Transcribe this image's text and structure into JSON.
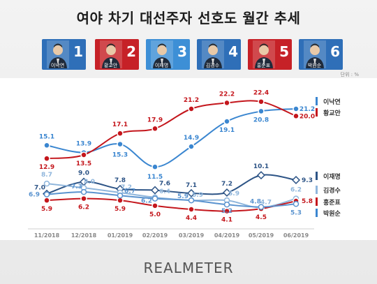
{
  "title": "여야 차기 대선주자 선호도 월간 추세",
  "unit_label": "단위 : %",
  "brand": "REALMETER",
  "candidates": [
    {
      "number": "1",
      "name": "이낙연",
      "color": "#2f6fb8",
      "icon": "person-photo"
    },
    {
      "number": "2",
      "name": "황교안",
      "color": "#c62127",
      "icon": "person-photo"
    },
    {
      "number": "3",
      "name": "이재명",
      "color": "#3d8fd6",
      "icon": "person-photo"
    },
    {
      "number": "4",
      "name": "김경수",
      "color": "#2f6fb8",
      "icon": "person-photo"
    },
    {
      "number": "5",
      "name": "홍준표",
      "color": "#c62127",
      "icon": "person-photo"
    },
    {
      "number": "6",
      "name": "박원순",
      "color": "#2f6fb8",
      "icon": "person-photo"
    }
  ],
  "chart_data": {
    "type": "line",
    "categories": [
      "11/2018",
      "12/2018",
      "01/2019",
      "02/2019",
      "03/2019",
      "04/2019",
      "05/2019",
      "06/2019"
    ],
    "ylim": [
      3,
      24
    ],
    "grid": false,
    "legend": "right",
    "series": [
      {
        "name": "이낙연",
        "values": [
          15.1,
          13.9,
          15.3,
          11.5,
          14.9,
          19.1,
          20.8,
          21.2
        ],
        "color": "#3a86d0",
        "legend_color": "#3a86d0"
      },
      {
        "name": "황교안",
        "values": [
          12.9,
          13.5,
          17.1,
          17.9,
          21.2,
          22.2,
          22.4,
          20.0
        ],
        "color": "#c4161c",
        "legend_color": "#c4161c"
      },
      {
        "name": "이재명",
        "values": [
          7.0,
          9.0,
          7.8,
          7.6,
          7.1,
          7.2,
          10.1,
          9.3
        ],
        "color": "#2d5486",
        "legend_color": "#2d5486"
      },
      {
        "name": "김경수",
        "values": [
          8.7,
          8.0,
          7.2,
          6.4,
          5.9,
          5.9,
          4.7,
          6.2
        ],
        "color": "#8fb6dc",
        "legend_color": "#8fb6dc"
      },
      {
        "name": "홍준표",
        "values": [
          5.9,
          6.2,
          5.9,
          5.0,
          4.4,
          4.1,
          4.5,
          5.8
        ],
        "color": "#c4161c",
        "legend_color": "#c4161c"
      },
      {
        "name": "박원순",
        "values": [
          6.9,
          7.3,
          6.7,
          6.2,
          5.9,
          5.2,
          4.8,
          5.3
        ],
        "color": "#5a93cf",
        "legend_color": "#3a86d0"
      }
    ],
    "label_texts": {
      "이낙연": [
        "15.1",
        "13.9",
        "15.3",
        "11.5",
        "14.9",
        "19.1",
        "20.8",
        "21.2"
      ],
      "황교안": [
        "12.9",
        "13.5",
        "17.1",
        "17.9",
        "21.2",
        "22.2",
        "22.4",
        "20.0"
      ],
      "이재명": [
        "7.0",
        "9.0",
        "7.8",
        "7.6",
        "7.1",
        "7.2",
        "10.1",
        "9.3"
      ],
      "김경수": [
        "8.7",
        "8.0",
        "7.2",
        "6.4",
        "5.9",
        "5.9",
        "4.7",
        "6.2"
      ],
      "홍준표": [
        "5.9",
        "6.2",
        "5.9",
        "5.0",
        "4.4",
        "4.1",
        "4.5",
        "5.8"
      ],
      "박원순": [
        "6.9",
        "7.3",
        "6.7",
        "6.2",
        "5.9",
        "5.2",
        "4.8",
        "5.3"
      ]
    }
  }
}
